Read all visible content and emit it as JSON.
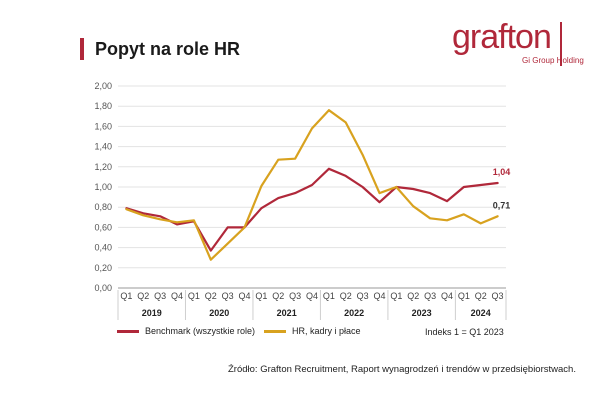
{
  "title": "Popyt na role HR",
  "logo": {
    "word": "grafton",
    "sub": "Gi Group Holding"
  },
  "colors": {
    "benchmark": "#b0283a",
    "hr": "#d8a21f",
    "grid": "#e3e3e3",
    "brand": "#b0283a"
  },
  "chart_data": {
    "type": "line",
    "categories": [
      "Q1",
      "Q2",
      "Q3",
      "Q4",
      "Q1",
      "Q2",
      "Q3",
      "Q4",
      "Q1",
      "Q2",
      "Q3",
      "Q4",
      "Q1",
      "Q2",
      "Q3",
      "Q4",
      "Q1",
      "Q2",
      "Q3",
      "Q4",
      "Q1",
      "Q2",
      "Q3"
    ],
    "years": [
      {
        "label": "2019",
        "start": 0,
        "end": 3
      },
      {
        "label": "2020",
        "start": 4,
        "end": 7
      },
      {
        "label": "2021",
        "start": 8,
        "end": 11
      },
      {
        "label": "2022",
        "start": 12,
        "end": 15
      },
      {
        "label": "2023",
        "start": 16,
        "end": 19
      },
      {
        "label": "2024",
        "start": 20,
        "end": 22
      }
    ],
    "yticks": [
      "0,00",
      "0,20",
      "0,40",
      "0,60",
      "0,80",
      "1,00",
      "1,20",
      "1,40",
      "1,60",
      "1,80",
      "2,00"
    ],
    "ylim": [
      0,
      2.0
    ],
    "series": [
      {
        "name": "Benchmark (wszystkie role)",
        "color_key": "benchmark",
        "values": [
          0.79,
          0.74,
          0.71,
          0.63,
          0.66,
          0.37,
          0.6,
          0.6,
          0.79,
          0.89,
          0.94,
          1.02,
          1.18,
          1.11,
          1.0,
          0.85,
          1.0,
          0.98,
          0.94,
          0.86,
          1.0,
          1.02,
          1.04
        ],
        "end_label": "1,04"
      },
      {
        "name": "HR, kadry i płace",
        "color_key": "hr",
        "values": [
          0.78,
          0.72,
          0.68,
          0.65,
          0.67,
          0.28,
          0.44,
          0.6,
          1.01,
          1.27,
          1.28,
          1.58,
          1.76,
          1.64,
          1.32,
          0.94,
          1.0,
          0.81,
          0.69,
          0.67,
          0.73,
          0.64,
          0.71
        ],
        "end_label": "0,71"
      }
    ]
  },
  "note": "Indeks 1 = Q1 2023",
  "source": "Źródło: Grafton Recruitment, Raport wynagrodzeń i trendów w przedsiębiorstwach."
}
